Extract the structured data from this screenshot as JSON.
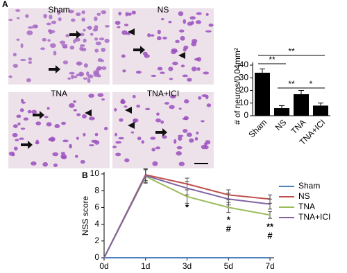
{
  "panel_labels": [
    "A",
    "B"
  ],
  "image_labels": [
    "Sham",
    "NS",
    "TNA",
    "TNA+ICI"
  ],
  "chart_data": [
    {
      "type": "bar",
      "ylabel": "# of neuros/0.04mm²",
      "categories": [
        "Sham",
        "NS",
        "TNA",
        "TNA+ICI"
      ],
      "values": [
        34,
        6,
        17,
        8
      ],
      "errors": [
        3,
        2,
        3,
        2
      ],
      "color": "#000000",
      "ylim": [
        0,
        40
      ],
      "yticks": [
        0,
        10,
        20,
        30,
        40
      ],
      "significance": [
        {
          "from": "Sham",
          "to": "TNA+ICI",
          "text": "**"
        },
        {
          "from": "Sham",
          "to": "NS",
          "text": "**"
        },
        {
          "from": "NS",
          "to": "TNA",
          "text": "**"
        },
        {
          "from": "TNA",
          "to": "TNA+ICI",
          "text": "*"
        }
      ]
    },
    {
      "type": "line",
      "ylabel": "NSS score",
      "categories": [
        "0d",
        "1d",
        "3d",
        "5d",
        "7d"
      ],
      "series": [
        {
          "name": "Sham",
          "color": "#4f81bd",
          "values": [
            0,
            0,
            0,
            0,
            0
          ]
        },
        {
          "name": "NS",
          "color": "#c0504d",
          "values": [
            0,
            9.9,
            8.8,
            7.5,
            7.0
          ],
          "errors": [
            0,
            0.7,
            0.7,
            0.6,
            0.5
          ]
        },
        {
          "name": "TNA",
          "color": "#9bbb59",
          "values": [
            0,
            9.7,
            7.3,
            6.0,
            5.1
          ],
          "errors": [
            0,
            0.8,
            0.8,
            0.6,
            0.4
          ]
        },
        {
          "name": "TNA+ICI",
          "color": "#8064a2",
          "values": [
            0,
            9.8,
            8.3,
            7.0,
            6.4
          ],
          "errors": [
            0,
            0.8,
            0.8,
            0.7,
            0.6
          ]
        }
      ],
      "ylim": [
        0,
        10
      ],
      "yticks": [
        0,
        2,
        4,
        6,
        8,
        10
      ],
      "annotations": [
        {
          "x": "3d",
          "text": "*"
        },
        {
          "x": "5d",
          "text": "*"
        },
        {
          "x": "5d",
          "text": "#"
        },
        {
          "x": "7d",
          "text": "**"
        },
        {
          "x": "7d",
          "text": "#"
        }
      ]
    }
  ]
}
